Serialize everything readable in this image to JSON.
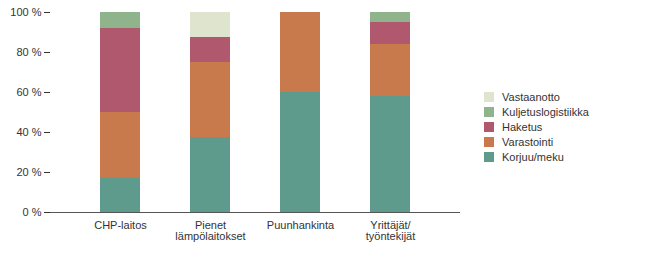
{
  "chart_data": {
    "type": "bar",
    "stacked": true,
    "grid": false,
    "legend": "right",
    "categories": [
      "CHP-laitos",
      "Pienet\nlämpölaitokset",
      "Puunhankinta",
      "Yrittäjät/\ntyöntekijät"
    ],
    "series": [
      {
        "name": "Korjuu/meku",
        "color": "#5e9b8c",
        "values": [
          17,
          37.5,
          60,
          58
        ]
      },
      {
        "name": "Varastointi",
        "color": "#c87a4d",
        "values": [
          33,
          37.5,
          40,
          26
        ]
      },
      {
        "name": "Haketus",
        "color": "#b0586d",
        "values": [
          42,
          12.5,
          0,
          11
        ]
      },
      {
        "name": "Kuljetuslogistiikka",
        "color": "#8fb48c",
        "values": [
          8,
          0,
          0,
          5
        ]
      },
      {
        "name": "Vastaanotto",
        "color": "#dfe4cf",
        "values": [
          0,
          12.5,
          0,
          0
        ]
      }
    ],
    "ylim": [
      0,
      100
    ],
    "yticks": [
      {
        "value": 0,
        "label": "0 %"
      },
      {
        "value": 20,
        "label": "20 %"
      },
      {
        "value": 40,
        "label": "40 %"
      },
      {
        "value": 60,
        "label": "60 %"
      },
      {
        "value": 80,
        "label": "80 %"
      },
      {
        "value": 100,
        "label": "100 %"
      }
    ]
  }
}
